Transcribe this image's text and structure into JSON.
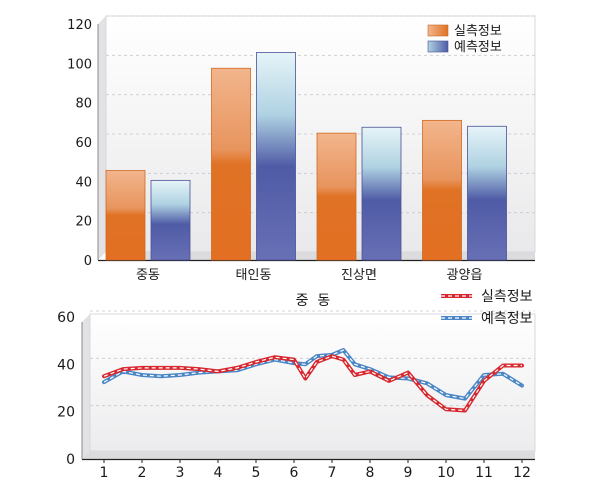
{
  "chart_data": [
    {
      "type": "bar",
      "categories": [
        "중동",
        "태인동",
        "진상면",
        "광양읍"
      ],
      "series": [
        {
          "name": "실측정보",
          "values": [
            45.5,
            97.5,
            64.5,
            71
          ]
        },
        {
          "name": "예측정보",
          "values": [
            40.5,
            105.5,
            67.5,
            68
          ]
        }
      ],
      "ylim": [
        0,
        120
      ],
      "yticks": [
        0,
        20,
        40,
        60,
        80,
        100,
        120
      ],
      "grid": true,
      "legend": "top-right",
      "colors": {
        "measured": "#E07B3A",
        "predicted": "#5A62A8"
      }
    },
    {
      "type": "line",
      "title": "중  동",
      "x": [
        1,
        1.5,
        2,
        2.5,
        3,
        3.5,
        4,
        4.5,
        5,
        5.5,
        6,
        6.3,
        6.6,
        7,
        7.3,
        7.6,
        8,
        8.5,
        9,
        9.5,
        10,
        10.5,
        11,
        11.5,
        12
      ],
      "xticks": [
        1,
        2,
        3,
        4,
        5,
        6,
        7,
        8,
        9,
        10,
        11,
        12
      ],
      "series": [
        {
          "name": "실측정보",
          "values": [
            35,
            38,
            38.5,
            38.5,
            38.5,
            38,
            37,
            38.5,
            41,
            43,
            42,
            34,
            41,
            43.5,
            42,
            35.5,
            37,
            33,
            36.5,
            27,
            21,
            20.5,
            33,
            39.5,
            39.5
          ]
        },
        {
          "name": "예측정보",
          "values": [
            32.5,
            37,
            35.5,
            35,
            35.5,
            36.5,
            37,
            37.5,
            40,
            42,
            40.5,
            40,
            43.5,
            44,
            46,
            40,
            38,
            34.5,
            34,
            32,
            27,
            25.5,
            35.5,
            36,
            31
          ]
        }
      ],
      "ylim": [
        0,
        60
      ],
      "yticks": [
        0,
        20,
        40,
        60
      ],
      "grid": true,
      "legend": "top-right",
      "colors": {
        "measured": "#D7282F",
        "predicted": "#4A86C6"
      }
    }
  ]
}
